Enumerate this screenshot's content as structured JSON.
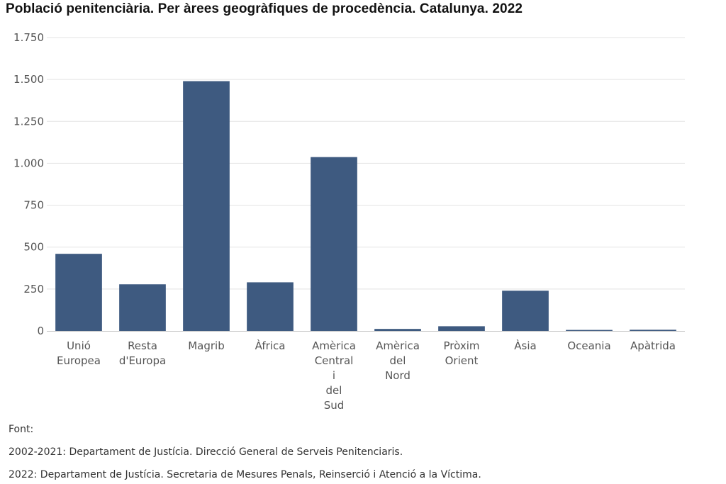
{
  "chart_data": {
    "type": "bar",
    "title": "Població penitenciària. Per àrees geogràfiques de procedència. Catalunya. 2022",
    "xlabel": "",
    "ylabel": "",
    "ylim": [
      0,
      1750
    ],
    "yticks": [
      0,
      250,
      500,
      750,
      1000,
      1250,
      1500,
      1750
    ],
    "ytick_labels": [
      "0",
      "250",
      "500",
      "750",
      "1.000",
      "1.250",
      "1.500",
      "1.750"
    ],
    "grid": true,
    "bar_color": "#3e5a80",
    "categories": [
      [
        "Unió",
        "Europea"
      ],
      [
        "Resta",
        "d'Europa"
      ],
      [
        "Magrib"
      ],
      [
        "Àfrica"
      ],
      [
        "Amèrica",
        "Central",
        "i",
        "del",
        "Sud"
      ],
      [
        "Amèrica",
        "del",
        "Nord"
      ],
      [
        "Pròxim",
        "Orient"
      ],
      [
        "Àsia"
      ],
      [
        "Oceania"
      ],
      [
        "Apàtrida"
      ]
    ],
    "values": [
      460,
      278,
      1490,
      290,
      1037,
      12,
      28,
      240,
      6,
      7
    ]
  },
  "source": {
    "heading": "Font:",
    "line1": "2002-2021: Departament de Justícia. Direcció General de Serveis Penitenciaris.",
    "line2": "2022: Departament de Justícia. Secretaria de Mesures Penals, Reinserció i Atenció a la Víctima."
  }
}
